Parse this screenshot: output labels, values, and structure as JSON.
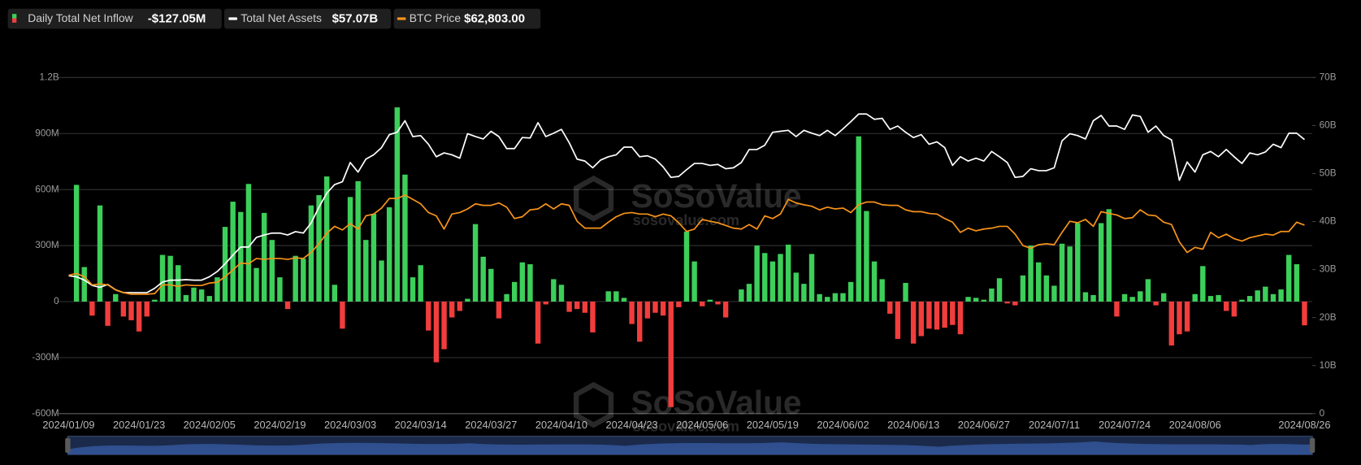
{
  "chart_data": {
    "type": "bar",
    "watermark": {
      "text": "SoSoValue",
      "url": "sosovalue.com"
    },
    "categories": [
      "2024/01/09",
      null,
      null,
      null,
      null,
      null,
      null,
      null,
      null,
      "2024/01/23",
      null,
      null,
      null,
      null,
      null,
      null,
      null,
      null,
      "2024/02/05",
      null,
      null,
      null,
      null,
      null,
      null,
      null,
      null,
      "2024/02/19",
      null,
      null,
      null,
      null,
      null,
      null,
      null,
      null,
      "2024/03/03",
      null,
      null,
      null,
      null,
      null,
      null,
      null,
      null,
      "2024/03/14",
      null,
      null,
      null,
      null,
      null,
      null,
      null,
      null,
      "2024/03/27",
      null,
      null,
      null,
      null,
      null,
      null,
      null,
      null,
      "2024/04/10",
      null,
      null,
      null,
      null,
      null,
      null,
      null,
      null,
      "2024/04/23",
      null,
      null,
      null,
      null,
      null,
      null,
      null,
      null,
      "2024/05/06",
      null,
      null,
      null,
      null,
      null,
      null,
      null,
      null,
      "2024/05/19",
      null,
      null,
      null,
      null,
      null,
      null,
      null,
      null,
      "2024/06/02",
      null,
      null,
      null,
      null,
      null,
      null,
      null,
      null,
      "2024/06/13",
      null,
      null,
      null,
      null,
      null,
      null,
      null,
      null,
      "2024/06/27",
      null,
      null,
      null,
      null,
      null,
      null,
      null,
      null,
      "2024/07/11",
      null,
      null,
      null,
      null,
      null,
      null,
      null,
      null,
      "2024/07/24",
      null,
      null,
      null,
      null,
      null,
      null,
      null,
      null,
      "2024/08/06",
      null,
      null,
      null,
      null,
      null,
      null,
      null,
      null,
      null,
      null,
      null,
      null,
      null,
      "2024/08/26"
    ],
    "ylim": [
      -600,
      1200
    ],
    "yticks": [
      {
        "value": -600,
        "label": "-600M"
      },
      {
        "value": -300,
        "label": "-300M"
      },
      0,
      {
        "value": 300,
        "label": "300M"
      },
      {
        "value": 600,
        "label": "600M"
      },
      {
        "value": 900,
        "label": "900M"
      },
      {
        "value": 1200,
        "label": "1.2B"
      }
    ],
    "y2lim": [
      0,
      70
    ],
    "y2ticks": [
      0,
      {
        "value": 10,
        "label": "10B"
      },
      {
        "value": 20,
        "label": "20B"
      },
      {
        "value": 30,
        "label": "30B"
      },
      {
        "value": 40,
        "label": "40B"
      },
      {
        "value": 50,
        "label": "50B"
      },
      {
        "value": 60,
        "label": "60B"
      },
      {
        "value": 70,
        "label": "70B"
      }
    ],
    "y3lim": [
      0,
      112000
    ],
    "grid": true,
    "legend": "top-left",
    "series": [
      {
        "name": "Daily Total Net Inflow",
        "legend_value": "-$127.05M",
        "type": "bar",
        "axis": "y",
        "color": "#3ccf5a",
        "negative_color": "#f23d3d",
        "values": [
          null,
          625,
          185,
          -75,
          515,
          -130,
          40,
          -80,
          -100,
          -160,
          -80,
          10,
          250,
          245,
          195,
          35,
          75,
          65,
          30,
          130,
          400,
          535,
          480,
          630,
          180,
          475,
          330,
          130,
          -40,
          245,
          230,
          515,
          570,
          670,
          90,
          -145,
          560,
          645,
          330,
          470,
          220,
          505,
          1040,
          680,
          130,
          195,
          -155,
          -325,
          -255,
          -85,
          -50,
          15,
          415,
          240,
          175,
          -90,
          40,
          105,
          210,
          200,
          -225,
          -15,
          120,
          90,
          -55,
          -40,
          -60,
          -165,
          0,
          55,
          55,
          20,
          -120,
          -215,
          -90,
          -60,
          -75,
          -565,
          -30,
          375,
          215,
          -25,
          10,
          -15,
          -85,
          0,
          65,
          95,
          300,
          260,
          215,
          255,
          305,
          155,
          95,
          255,
          40,
          25,
          45,
          45,
          105,
          885,
          485,
          215,
          120,
          -65,
          -200,
          100,
          -225,
          -185,
          -145,
          -150,
          -140,
          -125,
          -175,
          25,
          20,
          10,
          70,
          125,
          -10,
          -20,
          140,
          300,
          210,
          140,
          85,
          310,
          295,
          420,
          50,
          35,
          420,
          495,
          -80,
          40,
          25,
          55,
          120,
          -20,
          45,
          -235,
          -175,
          -160,
          40,
          190,
          30,
          35,
          -50,
          -80,
          10,
          30,
          60,
          80,
          40,
          65,
          250,
          200,
          -127.05
        ]
      },
      {
        "name": "Total Net Assets",
        "legend_value": "$57.07B",
        "type": "line",
        "axis": "y2",
        "color": "#ffffff",
        "values": [
          28.7,
          28.5,
          27.8,
          26.7,
          26.3,
          26.9,
          25.8,
          25.2,
          25.2,
          25.2,
          25.2,
          26.1,
          27.4,
          27.8,
          27.8,
          27.9,
          27.8,
          27.8,
          28.5,
          29.6,
          31.2,
          33.0,
          34.7,
          34.7,
          36.7,
          37.2,
          37.6,
          37.6,
          37.2,
          37.9,
          37.6,
          39.7,
          43.0,
          45.9,
          47.7,
          48.3,
          52.3,
          50.3,
          53.0,
          53.9,
          55.4,
          58.1,
          58.6,
          61.0,
          57.7,
          57.9,
          56.1,
          53.5,
          54.3,
          53.9,
          53.2,
          58.3,
          57.7,
          57.2,
          58.8,
          57.7,
          55.2,
          55.2,
          57.5,
          57.4,
          60.6,
          57.7,
          58.4,
          59.2,
          56.4,
          53.0,
          52.6,
          51.2,
          52.8,
          53.5,
          53.9,
          55.5,
          55.5,
          53.5,
          53.7,
          53.0,
          51.4,
          49.2,
          49.4,
          50.8,
          52.1,
          52.1,
          51.7,
          51.9,
          51.0,
          51.2,
          52.3,
          55.0,
          55.0,
          55.9,
          58.6,
          58.8,
          59.0,
          57.7,
          59.0,
          58.4,
          57.9,
          59.0,
          57.9,
          59.3,
          60.8,
          62.4,
          62.4,
          61.3,
          61.5,
          59.2,
          59.9,
          58.6,
          57.5,
          58.1,
          56.1,
          56.6,
          55.4,
          51.7,
          53.5,
          52.6,
          53.2,
          52.6,
          54.6,
          53.5,
          52.3,
          49.2,
          49.4,
          51.0,
          50.6,
          50.6,
          51.2,
          56.8,
          58.3,
          57.9,
          57.2,
          61.0,
          62.1,
          59.9,
          59.9,
          59.2,
          62.2,
          61.9,
          58.6,
          59.9,
          57.9,
          57.0,
          48.6,
          52.4,
          50.3,
          53.9,
          54.6,
          53.5,
          55.0,
          53.5,
          52.1,
          54.3,
          53.9,
          54.5,
          56.1,
          55.4,
          58.4,
          58.4,
          57.07
        ]
      },
      {
        "name": "BTC Price",
        "legend_value": "$62,803.00",
        "type": "line",
        "axis": "y3",
        "color": "#f7931a",
        "values": [
          46100,
          46700,
          45600,
          42900,
          43200,
          42900,
          41200,
          40300,
          39800,
          39800,
          39800,
          40000,
          42900,
          42900,
          42400,
          42900,
          42700,
          42700,
          43500,
          43800,
          45600,
          47900,
          50200,
          49900,
          51700,
          51400,
          51700,
          51700,
          51400,
          51900,
          51700,
          53700,
          56600,
          60100,
          62400,
          61200,
          63300,
          61500,
          65900,
          66500,
          68500,
          71700,
          71700,
          72800,
          71400,
          69900,
          67000,
          65900,
          61500,
          66500,
          67000,
          68200,
          69900,
          69400,
          69400,
          70200,
          68800,
          65000,
          65600,
          67900,
          68200,
          69900,
          68200,
          69900,
          69400,
          64100,
          61800,
          61800,
          61800,
          63800,
          65600,
          66700,
          67000,
          66500,
          66500,
          65600,
          66500,
          65900,
          63600,
          60700,
          61500,
          64700,
          64100,
          63600,
          62700,
          61800,
          61500,
          63000,
          61500,
          65900,
          65000,
          66500,
          71400,
          70200,
          69600,
          69100,
          67900,
          68800,
          68200,
          68500,
          67000,
          69600,
          70500,
          70500,
          69600,
          69400,
          69400,
          67900,
          67300,
          67300,
          66700,
          66500,
          65000,
          63800,
          60400,
          61800,
          60900,
          61500,
          61800,
          62400,
          62400,
          59800,
          56000,
          55100,
          56300,
          56600,
          56300,
          60400,
          64100,
          63600,
          64700,
          62400,
          67300,
          66700,
          66200,
          65000,
          65300,
          67900,
          66200,
          65900,
          63800,
          63000,
          57200,
          53700,
          55400,
          54800,
          60400,
          58600,
          59800,
          58300,
          57500,
          58600,
          59200,
          59800,
          59500,
          60700,
          60700,
          63800,
          62803
        ]
      }
    ]
  }
}
